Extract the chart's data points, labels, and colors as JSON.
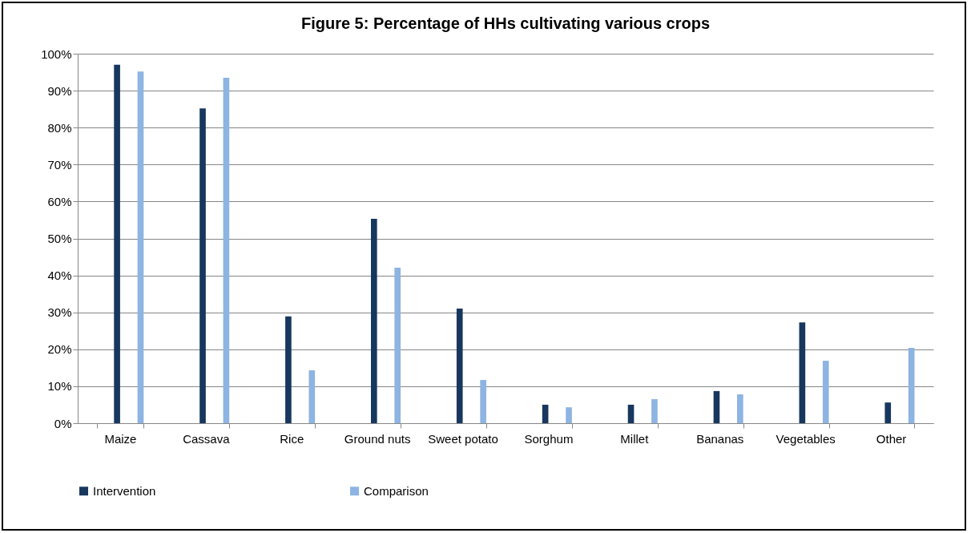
{
  "chart_data": {
    "type": "bar",
    "title": "Figure 5:  Percentage of HHs cultivating various crops",
    "categories": [
      "Maize",
      "Cassava",
      "Rice",
      "Ground nuts",
      "Sweet potato",
      "Sorghum",
      "Millet",
      "Bananas",
      "Vegetables",
      "Other"
    ],
    "series": [
      {
        "name": "Intervention",
        "color": "#17375e",
        "values": [
          97.0,
          85.2,
          28.9,
          55.3,
          31.0,
          5.0,
          5.0,
          8.7,
          27.3,
          5.6
        ]
      },
      {
        "name": "Comparison",
        "color": "#8db4e2",
        "values": [
          95.2,
          93.5,
          14.3,
          42.1,
          11.7,
          4.3,
          6.5,
          7.8,
          16.9,
          20.4
        ]
      }
    ],
    "ylim": [
      0,
      100
    ],
    "yticks": [
      {
        "value": 0,
        "label": "0%"
      },
      {
        "value": 10,
        "label": "10%"
      },
      {
        "value": 20,
        "label": "20%"
      },
      {
        "value": 30,
        "label": "30%"
      },
      {
        "value": 40,
        "label": "40%"
      },
      {
        "value": 50,
        "label": "50%"
      },
      {
        "value": 60,
        "label": "60%"
      },
      {
        "value": 70,
        "label": "70%"
      },
      {
        "value": 80,
        "label": "80%"
      },
      {
        "value": 90,
        "label": "90%"
      },
      {
        "value": 100,
        "label": "100%"
      }
    ],
    "grid": "y",
    "legend": "bottom"
  }
}
